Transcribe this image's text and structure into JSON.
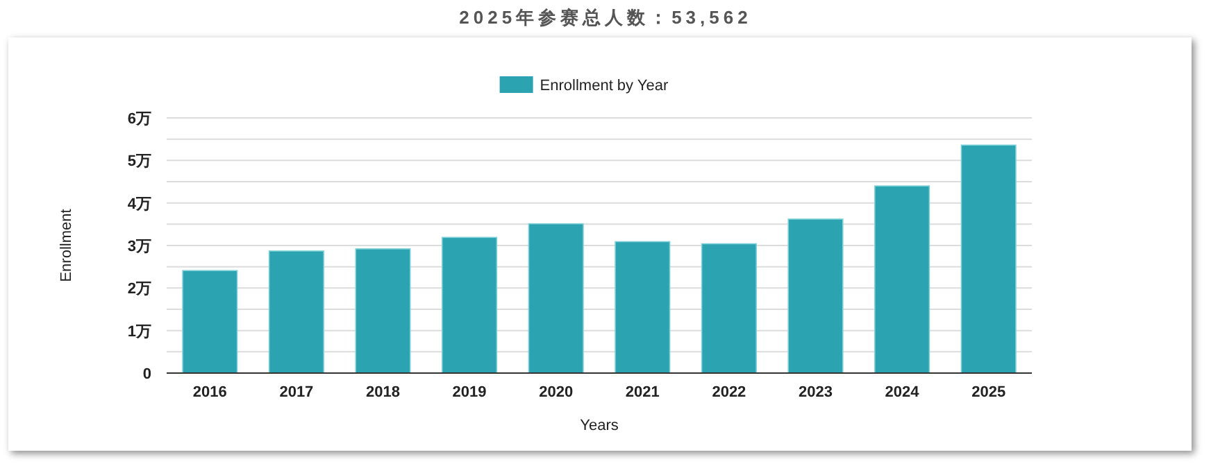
{
  "chart_data": {
    "type": "bar",
    "title": "2025年参赛总人数：53,562",
    "xlabel": "Years",
    "ylabel": "Enrollment",
    "categories": [
      "2016",
      "2017",
      "2018",
      "2019",
      "2020",
      "2021",
      "2022",
      "2023",
      "2024",
      "2025"
    ],
    "series": [
      {
        "name": "Enrollment by Year",
        "color": "#2ba3b0",
        "values": [
          2.41,
          2.87,
          2.92,
          3.19,
          3.51,
          3.09,
          3.04,
          3.62,
          4.4,
          5.36
        ]
      }
    ],
    "ylim": [
      0,
      6
    ],
    "yticks": [
      0,
      {
        "value": 0.5,
        "label": null
      },
      {
        "value": 1,
        "label": "1万"
      },
      {
        "value": 1.5,
        "label": null
      },
      {
        "value": 2,
        "label": "2万"
      },
      {
        "value": 2.5,
        "label": null
      },
      {
        "value": 3,
        "label": "3万"
      },
      {
        "value": 3.5,
        "label": null
      },
      {
        "value": 4,
        "label": "4万"
      },
      {
        "value": 4.5,
        "label": null
      },
      {
        "value": 5,
        "label": "5万"
      },
      {
        "value": 5.5,
        "label": null
      },
      {
        "value": 6,
        "label": "6万"
      }
    ],
    "grid": "y",
    "legend": "top"
  }
}
